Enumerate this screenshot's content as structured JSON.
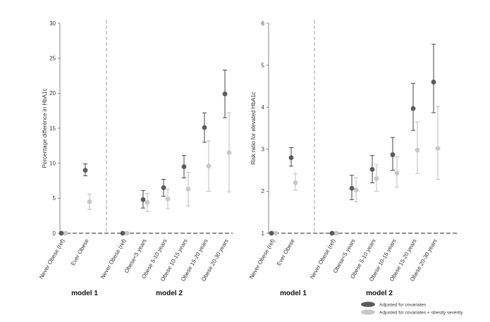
{
  "legend": [
    {
      "label": "Adjusted for covariates",
      "color": "#5a5a5a"
    },
    {
      "label": "Adjusted for covariates + obesity severity",
      "color": "#c8c8c8"
    }
  ],
  "group_labels": {
    "left_model1": "model 1",
    "left_model2": "model 2",
    "right_model1": "model 1",
    "right_model2": "model 2"
  },
  "chart_data": [
    {
      "type": "scatter",
      "subtype": "point-with-error-bars",
      "ylabel": "Percentage difference in HbA1c",
      "ylim": [
        0,
        30
      ],
      "yticks": [
        0,
        5,
        10,
        15,
        20,
        25,
        30
      ],
      "reference_line": 0,
      "categories": [
        "Never Obese (ref)",
        "Ever Obese",
        "Never Obese (ref)",
        "Obese<5 years",
        "Obese 5-10 years",
        "Obese 10-15 years",
        "Obese 15-20 years",
        "Obese 20-30 years"
      ],
      "groups": [
        {
          "name": "model 1",
          "categories": [
            0,
            1
          ]
        },
        {
          "name": "model 2",
          "categories": [
            2,
            3,
            4,
            5,
            6,
            7
          ]
        }
      ],
      "series": [
        {
          "name": "Adjusted for covariates",
          "color": "#5a5a5a",
          "values": [
            0,
            9.0,
            0,
            4.8,
            6.5,
            9.5,
            15.1,
            19.9
          ],
          "lower": [
            0,
            8.2,
            0,
            3.6,
            5.3,
            7.9,
            13.0,
            16.5
          ],
          "upper": [
            0,
            9.9,
            0,
            6.1,
            7.7,
            11.1,
            17.2,
            23.3
          ]
        },
        {
          "name": "Adjusted for covariates + obesity severity",
          "color": "#c8c8c8",
          "values": [
            0,
            4.5,
            0,
            4.4,
            4.9,
            6.3,
            9.6,
            11.5
          ],
          "lower": [
            0,
            3.4,
            0,
            3.1,
            3.5,
            3.9,
            6.0,
            5.9
          ],
          "upper": [
            0,
            5.6,
            0,
            5.7,
            6.3,
            8.7,
            13.2,
            17.2
          ]
        }
      ]
    },
    {
      "type": "scatter",
      "subtype": "point-with-error-bars",
      "ylabel": "Risk ratio for elevated HbA1c",
      "ylim": [
        1,
        6
      ],
      "yticks": [
        1,
        2,
        3,
        4,
        5,
        6
      ],
      "reference_line": 1,
      "categories": [
        "Never Obese (ref)",
        "Ever Obese",
        "Never Obese (ref)",
        "Obese<5 years",
        "Obese 5-10 years",
        "Obese 10-15 years",
        "Obese 15-20 years",
        "Obese 20-30 years"
      ],
      "groups": [
        {
          "name": "model 1",
          "categories": [
            0,
            1
          ]
        },
        {
          "name": "model 2",
          "categories": [
            2,
            3,
            4,
            5,
            6,
            7
          ]
        }
      ],
      "series": [
        {
          "name": "Adjusted for covariates",
          "color": "#5a5a5a",
          "values": [
            1,
            2.8,
            1,
            2.07,
            2.52,
            2.87,
            3.97,
            4.6
          ],
          "lower": [
            1,
            2.6,
            1,
            1.8,
            2.2,
            2.5,
            3.45,
            3.87
          ],
          "upper": [
            1,
            3.04,
            1,
            2.38,
            2.85,
            3.28,
            4.57,
            5.5
          ]
        },
        {
          "name": "Adjusted for covariates + obesity severity",
          "color": "#c8c8c8",
          "values": [
            1,
            2.2,
            1,
            2.03,
            2.3,
            2.43,
            2.98,
            3.02
          ],
          "lower": [
            1,
            2.02,
            1,
            1.75,
            2.0,
            2.1,
            2.42,
            2.28
          ],
          "upper": [
            1,
            2.42,
            1,
            2.32,
            2.63,
            2.82,
            3.65,
            4.02
          ]
        }
      ]
    }
  ]
}
